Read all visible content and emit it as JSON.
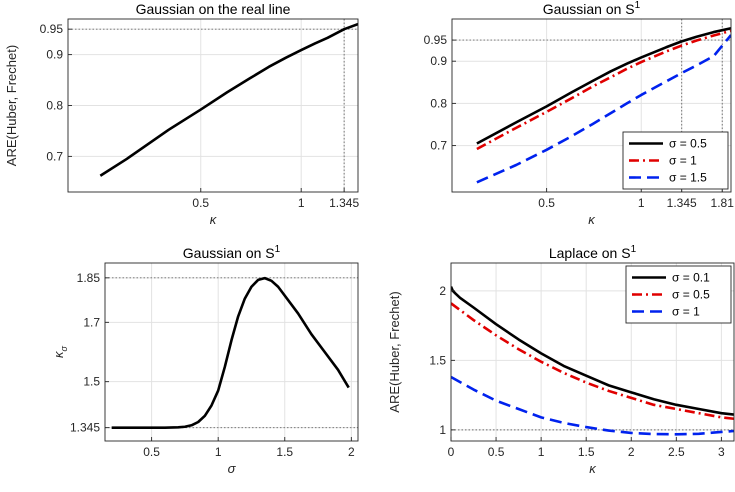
{
  "chart_data": [
    {
      "type": "line",
      "title": "Gaussian on the real line",
      "title_sup": "",
      "xlabel": "κ",
      "ylabel": "ARE(Huber, Frechet)",
      "xlim": [
        0.2,
        1.48
      ],
      "ylim": [
        0.63,
        0.97
      ],
      "xscale": "log",
      "x_ticks": [
        0.5,
        1,
        1.345
      ],
      "x_tick_labels": [
        "0.5",
        "1",
        "1.345"
      ],
      "y_ticks": [
        0.7,
        0.8,
        0.9,
        0.95
      ],
      "y_tick_labels": [
        "0.7",
        "0.8",
        "0.9",
        "0.95"
      ],
      "grid": true,
      "ref_lines": {
        "x": [
          1.345
        ],
        "y": [
          0.95
        ]
      },
      "legend": null,
      "series": [
        {
          "name": "",
          "color": "#000000",
          "dash": "solid",
          "x": [
            0.25,
            0.3,
            0.4,
            0.5,
            0.6,
            0.7,
            0.8,
            0.9,
            1.0,
            1.1,
            1.2,
            1.345,
            1.48
          ],
          "y": [
            0.662,
            0.695,
            0.752,
            0.792,
            0.826,
            0.853,
            0.876,
            0.894,
            0.909,
            0.922,
            0.933,
            0.95,
            0.96
          ]
        }
      ]
    },
    {
      "type": "line",
      "title": "Gaussian on S",
      "title_sup": "1",
      "xlabel": "κ",
      "ylabel": "",
      "xlim": [
        0.25,
        1.93
      ],
      "ylim": [
        0.59,
        1.0
      ],
      "xscale": "log",
      "x_ticks": [
        0.5,
        1,
        1.345,
        1.81
      ],
      "x_tick_labels": [
        "0.5",
        "1",
        "1.345",
        "1.81"
      ],
      "y_ticks": [
        0.7,
        0.8,
        0.9,
        0.95
      ],
      "y_tick_labels": [
        "0.7",
        "0.8",
        "0.9",
        "0.95"
      ],
      "grid": true,
      "ref_lines": {
        "x": [
          1.345,
          1.81
        ],
        "y": [
          0.95
        ]
      },
      "legend": "bottom-right",
      "series": [
        {
          "name": "σ = 0.5",
          "color": "#000000",
          "dash": "solid",
          "x": [
            0.3,
            0.4,
            0.5,
            0.6,
            0.7,
            0.8,
            0.9,
            1.0,
            1.2,
            1.345,
            1.5,
            1.7,
            1.93
          ],
          "y": [
            0.705,
            0.755,
            0.793,
            0.826,
            0.853,
            0.876,
            0.894,
            0.909,
            0.933,
            0.947,
            0.958,
            0.969,
            0.978
          ]
        },
        {
          "name": "σ = 1",
          "color": "#e00000",
          "dash": "dashdot",
          "x": [
            0.3,
            0.4,
            0.5,
            0.6,
            0.7,
            0.8,
            0.9,
            1.0,
            1.2,
            1.345,
            1.5,
            1.7,
            1.93
          ],
          "y": [
            0.692,
            0.742,
            0.78,
            0.812,
            0.84,
            0.862,
            0.882,
            0.898,
            0.923,
            0.937,
            0.949,
            0.961,
            0.972
          ]
        },
        {
          "name": "σ = 1.5",
          "color": "#0022ee",
          "dash": "dashed",
          "x": [
            0.3,
            0.4,
            0.5,
            0.6,
            0.7,
            0.8,
            0.9,
            1.0,
            1.2,
            1.345,
            1.5,
            1.7,
            1.93
          ],
          "y": [
            0.613,
            0.654,
            0.69,
            0.722,
            0.751,
            0.777,
            0.8,
            0.82,
            0.852,
            0.872,
            0.89,
            0.912,
            0.962
          ]
        }
      ]
    },
    {
      "type": "line",
      "title": "Gaussian on S",
      "title_sup": "1",
      "xlabel": "σ",
      "ylabel": "κ",
      "ylabel_sub": "σ",
      "xlim": [
        0.15,
        2.05
      ],
      "ylim": [
        1.3,
        1.9
      ],
      "xscale": "linear",
      "x_ticks": [
        0.5,
        1,
        1.5,
        2
      ],
      "x_tick_labels": [
        "0.5",
        "1",
        "1.5",
        "2"
      ],
      "y_ticks": [
        1.345,
        1.5,
        1.7,
        1.85
      ],
      "y_tick_labels": [
        "1.345",
        "1.5",
        "1.7",
        "1.85"
      ],
      "grid": true,
      "ref_lines": {
        "x": [],
        "y": [
          1.345,
          1.85
        ]
      },
      "legend": null,
      "series": [
        {
          "name": "",
          "color": "#000000",
          "dash": "solid",
          "x": [
            0.2,
            0.4,
            0.6,
            0.7,
            0.75,
            0.8,
            0.85,
            0.9,
            0.95,
            1.0,
            1.05,
            1.1,
            1.15,
            1.2,
            1.25,
            1.3,
            1.35,
            1.4,
            1.45,
            1.5,
            1.6,
            1.7,
            1.8,
            1.9,
            1.98
          ],
          "y": [
            1.345,
            1.345,
            1.345,
            1.346,
            1.348,
            1.353,
            1.364,
            1.385,
            1.42,
            1.47,
            1.55,
            1.64,
            1.72,
            1.78,
            1.82,
            1.843,
            1.849,
            1.84,
            1.82,
            1.79,
            1.73,
            1.66,
            1.6,
            1.54,
            1.48
          ]
        }
      ]
    },
    {
      "type": "line",
      "title": "Laplace on S",
      "title_sup": "1",
      "xlabel": "κ",
      "ylabel": "ARE(Huber, Frechet)",
      "xlim": [
        0,
        3.14
      ],
      "ylim": [
        0.92,
        2.2
      ],
      "xscale": "linear",
      "x_ticks": [
        0,
        0.5,
        1,
        1.5,
        2,
        2.5,
        3
      ],
      "x_tick_labels": [
        "0",
        "0.5",
        "1",
        "1.5",
        "2",
        "2.5",
        "3"
      ],
      "y_ticks": [
        1,
        1.5,
        2
      ],
      "y_tick_labels": [
        "1",
        "1.5",
        "2"
      ],
      "grid": true,
      "ref_lines": {
        "x": [],
        "y": [
          1
        ]
      },
      "legend": "top-right",
      "series": [
        {
          "name": "σ = 0.1",
          "color": "#000000",
          "dash": "solid",
          "x": [
            0,
            0.02,
            0.05,
            0.1,
            0.25,
            0.5,
            0.75,
            1.0,
            1.25,
            1.5,
            1.75,
            2.0,
            2.25,
            2.5,
            2.75,
            3.0,
            3.14
          ],
          "y": [
            2.03,
            2.0,
            1.98,
            1.95,
            1.88,
            1.76,
            1.65,
            1.55,
            1.46,
            1.39,
            1.32,
            1.27,
            1.22,
            1.18,
            1.15,
            1.12,
            1.11
          ]
        },
        {
          "name": "σ = 0.5",
          "color": "#e00000",
          "dash": "dashdot",
          "x": [
            0,
            0.25,
            0.5,
            0.75,
            1.0,
            1.25,
            1.5,
            1.75,
            2.0,
            2.25,
            2.5,
            2.75,
            3.0,
            3.14
          ],
          "y": [
            1.91,
            1.79,
            1.68,
            1.58,
            1.49,
            1.41,
            1.34,
            1.28,
            1.23,
            1.18,
            1.15,
            1.12,
            1.09,
            1.08
          ]
        },
        {
          "name": "σ = 1",
          "color": "#0022ee",
          "dash": "dashed",
          "x": [
            0,
            0.25,
            0.5,
            0.75,
            1.0,
            1.25,
            1.5,
            1.75,
            2.0,
            2.25,
            2.5,
            2.75,
            3.0,
            3.14
          ],
          "y": [
            1.38,
            1.29,
            1.21,
            1.15,
            1.09,
            1.05,
            1.02,
            0.995,
            0.978,
            0.97,
            0.968,
            0.972,
            0.985,
            0.992
          ]
        }
      ]
    }
  ]
}
